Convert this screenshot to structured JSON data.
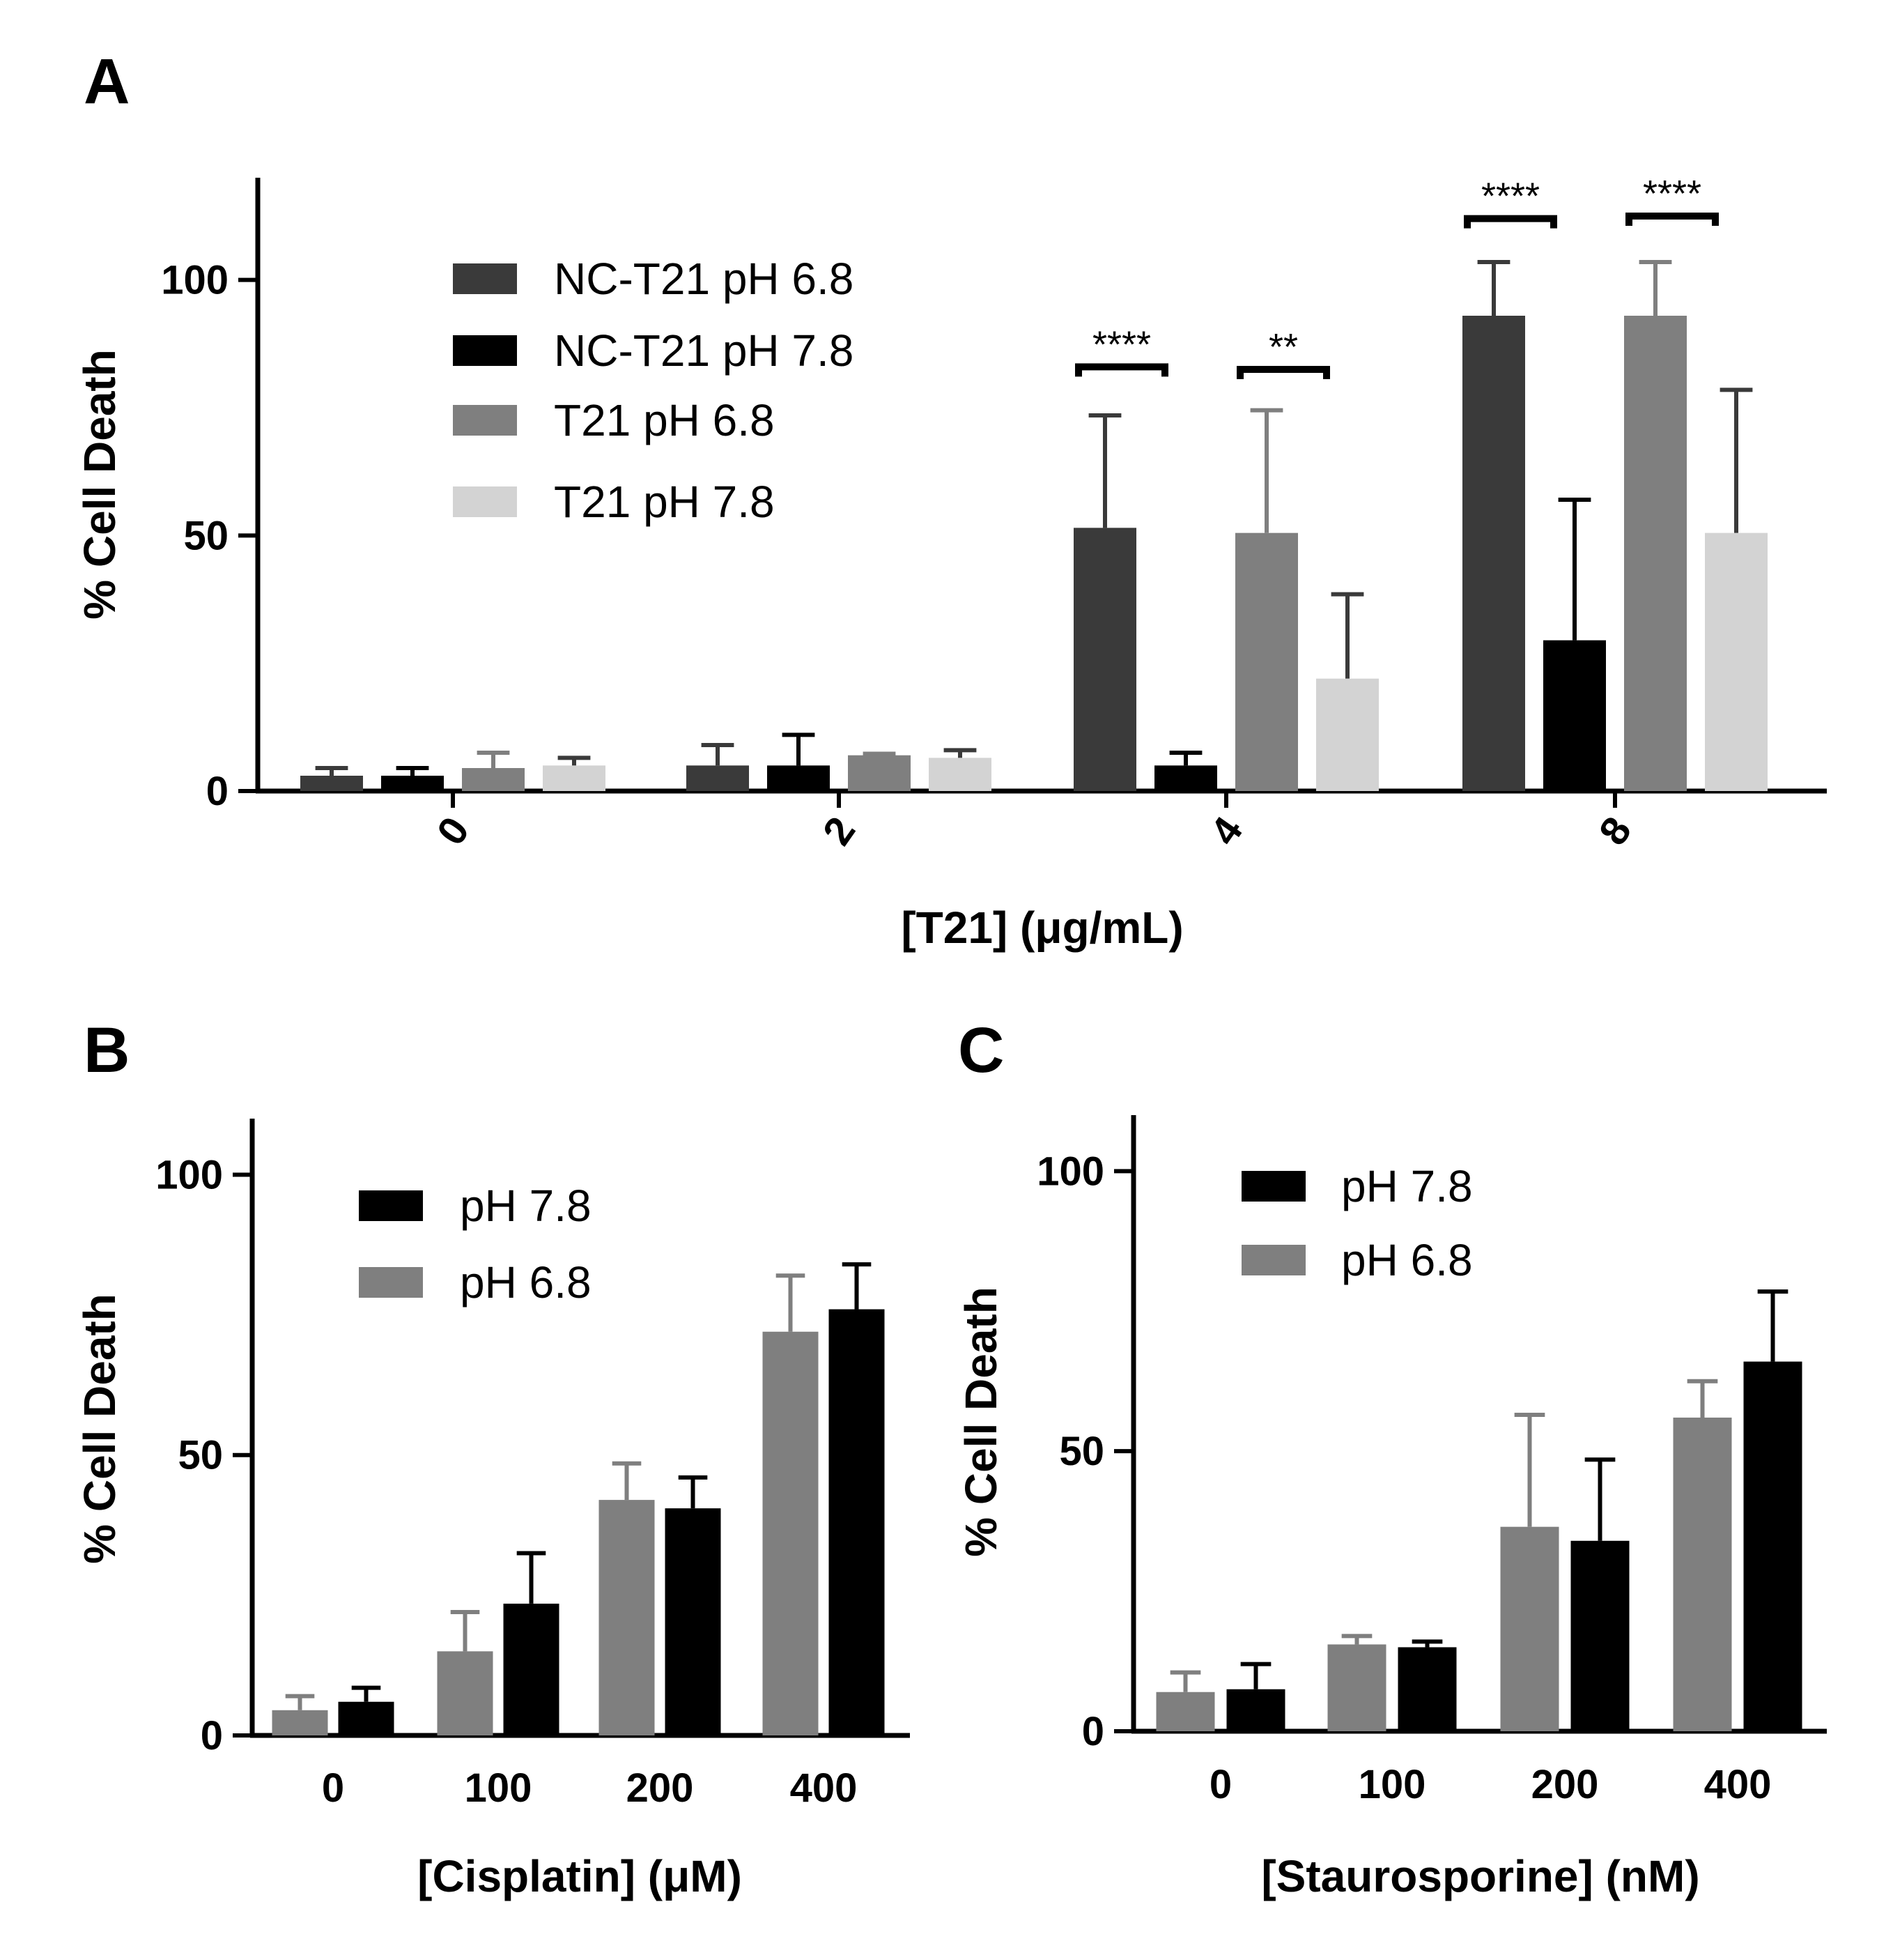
{
  "colors": {
    "nc_t21_ph68": "#3a3a3a",
    "nc_t21_ph78": "#000000",
    "t21_ph68": "#7f7f7f",
    "t21_ph78": "#d3d3d3",
    "ph78": "#000000",
    "ph68": "#7f7f7f"
  },
  "chart_data": [
    {
      "panel": "A",
      "type": "bar",
      "title": "",
      "xlabel": "[T21] (μg/mL)",
      "ylabel": "% Cell Death",
      "ylim": [
        0,
        120
      ],
      "yticks": [
        0,
        50,
        100
      ],
      "categories": [
        "0",
        "2",
        "4",
        "8"
      ],
      "legend_position": "top-left",
      "series": [
        {
          "name": "NC-T21 pH 6.8",
          "color_key": "nc_t21_ph68",
          "values": [
            3,
            5,
            51.5,
            93
          ],
          "errors": [
            1.5,
            4,
            22,
            10.5
          ]
        },
        {
          "name": "NC-T21 pH 7.8",
          "color_key": "nc_t21_ph78",
          "values": [
            3,
            5,
            5,
            29.5
          ],
          "errors": [
            1.5,
            6,
            2.5,
            27.5
          ]
        },
        {
          "name": "T21 pH 6.8",
          "color_key": "t21_ph68",
          "values": [
            4.5,
            7,
            50.5,
            93
          ],
          "errors": [
            3,
            0.3,
            24,
            10.5
          ]
        },
        {
          "name": "T21 pH 7.8",
          "color_key": "t21_ph78",
          "values": [
            5,
            6.5,
            22,
            50.5
          ],
          "errors": [
            1.5,
            1.5,
            16.5,
            28
          ]
        }
      ],
      "significance": [
        {
          "category": 2,
          "from_series": 0,
          "to_series": 1,
          "label": "****",
          "y": 83
        },
        {
          "category": 2,
          "from_series": 2,
          "to_series": 3,
          "label": "**",
          "y": 82.5
        },
        {
          "category": 3,
          "from_series": 0,
          "to_series": 1,
          "label": "****",
          "y": 112
        },
        {
          "category": 3,
          "from_series": 2,
          "to_series": 3,
          "label": "****",
          "y": 112.5
        }
      ]
    },
    {
      "panel": "B",
      "type": "bar",
      "title": "",
      "xlabel": "[Cisplatin] (μM)",
      "ylabel": "% Cell Death",
      "ylim": [
        0,
        110
      ],
      "yticks": [
        0,
        50,
        100
      ],
      "categories": [
        "0",
        "100",
        "200",
        "400"
      ],
      "legend_position": "top-left",
      "legend_order": [
        1,
        0
      ],
      "series": [
        {
          "name": "pH 6.8",
          "color_key": "ph68",
          "values": [
            4.5,
            15,
            42,
            72
          ],
          "errors": [
            2.5,
            7,
            6.5,
            10
          ]
        },
        {
          "name": "pH 7.8",
          "color_key": "ph78",
          "values": [
            6,
            23.5,
            40.5,
            76
          ],
          "errors": [
            2.5,
            9,
            5.5,
            8
          ]
        }
      ]
    },
    {
      "panel": "C",
      "type": "bar",
      "title": "",
      "xlabel": "[Staurosporine] (nM)",
      "ylabel": "% Cell Death",
      "ylim": [
        0,
        110
      ],
      "yticks": [
        0,
        50,
        100
      ],
      "categories": [
        "0",
        "100",
        "200",
        "400"
      ],
      "legend_position": "top-left",
      "legend_order": [
        1,
        0
      ],
      "series": [
        {
          "name": "pH 6.8",
          "color_key": "ph68",
          "values": [
            7,
            15.5,
            36.5,
            56
          ],
          "errors": [
            3.5,
            1.5,
            20,
            6.5
          ]
        },
        {
          "name": "pH 7.8",
          "color_key": "ph78",
          "values": [
            7.5,
            15,
            34,
            66
          ],
          "errors": [
            4.5,
            1,
            14.5,
            12.5
          ]
        }
      ]
    }
  ]
}
